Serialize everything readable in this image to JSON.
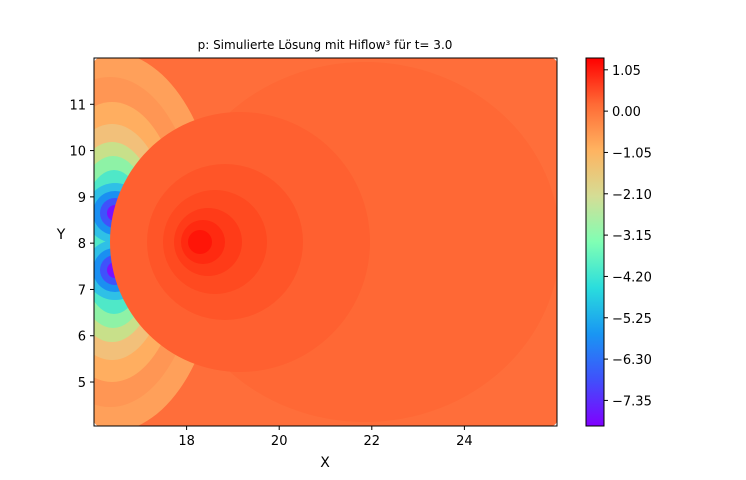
{
  "chart_data": {
    "type": "heatmap",
    "subtype": "filled-contour",
    "title": "p: Simulierte Lösung mit Hiflow³ für t= 3.0",
    "xlabel": "X",
    "ylabel": "Y",
    "xlim": [
      16.0,
      26.0
    ],
    "ylim": [
      4.05,
      12.0
    ],
    "x_ticks": [
      18,
      20,
      22,
      24
    ],
    "x_tick_labels": [
      "18",
      "20",
      "22",
      "24"
    ],
    "y_ticks": [
      5,
      6,
      7,
      8,
      9,
      10,
      11
    ],
    "y_tick_labels": [
      "5",
      "6",
      "7",
      "8",
      "9",
      "10",
      "11"
    ],
    "colorbar": {
      "colormap": "rainbow",
      "range": [
        -8.0,
        1.35
      ],
      "ticks": [
        1.05,
        0.0,
        -1.05,
        -2.1,
        -3.15,
        -4.2,
        -5.25,
        -6.3,
        -7.35
      ],
      "tick_labels": [
        "1.05",
        "0.00",
        "−1.05",
        "−2.10",
        "−3.15",
        "−4.20",
        "−5.25",
        "−6.30",
        "−7.35"
      ]
    },
    "features": [
      {
        "kind": "minimum",
        "x": 16.45,
        "y": 8.58,
        "value": -7.9
      },
      {
        "kind": "minimum",
        "x": 16.45,
        "y": 7.42,
        "value": -7.9
      },
      {
        "kind": "maximum",
        "x": 18.25,
        "y": 8.0,
        "value": 1.35
      }
    ]
  }
}
